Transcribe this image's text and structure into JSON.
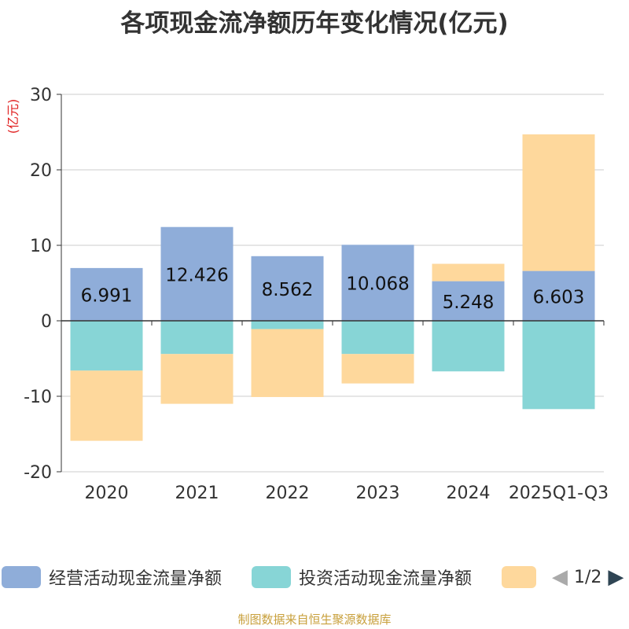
{
  "chart_data": {
    "type": "bar",
    "stacked": true,
    "title": "各项现金流净额历年变化情况(亿元)",
    "ylabel": "(亿元)",
    "xlabel": "",
    "ylim": [
      -20,
      30
    ],
    "yticks": [
      -20,
      -10,
      0,
      10,
      20,
      30
    ],
    "categories": [
      "2020",
      "2021",
      "2022",
      "2023",
      "2024",
      "2025Q1-Q3"
    ],
    "series": [
      {
        "name": "经营活动现金流量净额",
        "color": "#8fadd9",
        "values": [
          6.991,
          12.426,
          8.562,
          10.068,
          5.248,
          6.603
        ],
        "data_labels": [
          "6.991",
          "12.426",
          "8.562",
          "10.068",
          "5.248",
          "6.603"
        ]
      },
      {
        "name": "投资活动现金流量净额",
        "color": "#87d5d6",
        "values": [
          -6.6,
          -4.4,
          -1.1,
          -4.4,
          -6.7,
          -11.7
        ]
      },
      {
        "name": "",
        "color": "#fed89c",
        "values": [
          -9.3,
          -6.6,
          -9.0,
          -3.9,
          2.3,
          18.1
        ]
      }
    ],
    "legend": "bottom"
  },
  "legend": {
    "items": [
      {
        "label": "经营活动现金流量净额",
        "color": "#8fadd9"
      },
      {
        "label": "投资活动现金流量净额",
        "color": "#87d5d6"
      },
      {
        "label": "",
        "color": "#fed89c"
      }
    ],
    "page_indicator": "1/2"
  },
  "footer": {
    "source": "制图数据来自恒生聚源数据库"
  }
}
